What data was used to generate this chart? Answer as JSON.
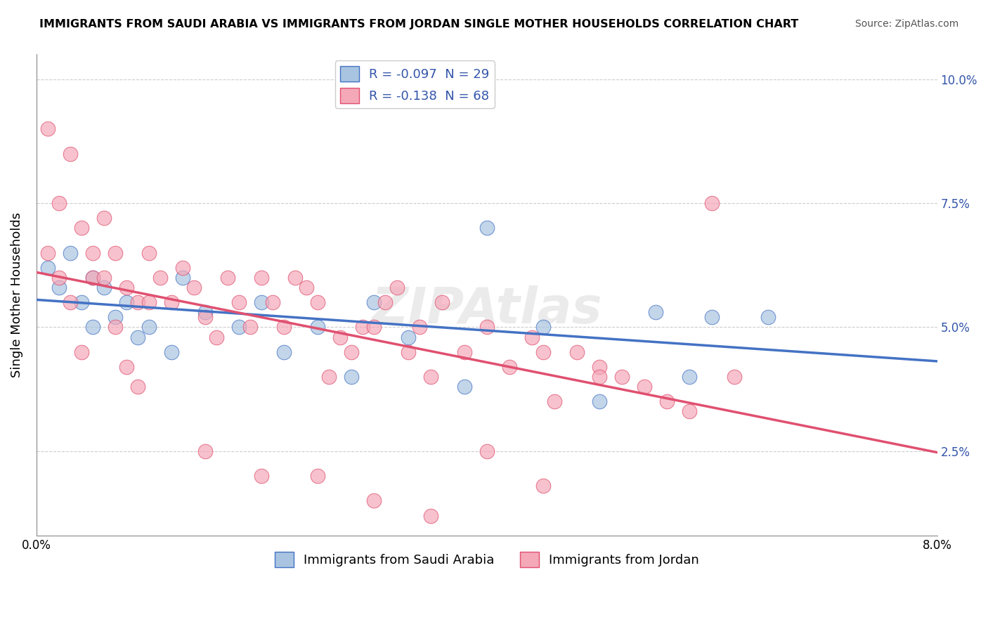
{
  "title": "IMMIGRANTS FROM SAUDI ARABIA VS IMMIGRANTS FROM JORDAN SINGLE MOTHER HOUSEHOLDS CORRELATION CHART",
  "source": "Source: ZipAtlas.com",
  "xlabel": "",
  "ylabel": "Single Mother Households",
  "legend_label_blue": "Immigrants from Saudi Arabia",
  "legend_label_pink": "Immigrants from Jordan",
  "R_blue": -0.097,
  "N_blue": 29,
  "R_pink": -0.138,
  "N_pink": 68,
  "xlim": [
    0.0,
    0.08
  ],
  "ylim": [
    0.008,
    0.105
  ],
  "yticks": [
    0.025,
    0.05,
    0.075,
    0.1
  ],
  "ytick_labels": [
    "2.5%",
    "5.0%",
    "7.5%",
    "10.0%"
  ],
  "xticks": [
    0.0,
    0.02,
    0.04,
    0.06,
    0.08
  ],
  "xtick_labels": [
    "0.0%",
    "",
    "",
    "",
    "8.0%"
  ],
  "color_blue": "#a8c4e0",
  "color_pink": "#f4a8b8",
  "line_color_blue": "#4472c4",
  "line_color_pink": "#e05070",
  "watermark": "ZIPAtlas",
  "blue_x": [
    0.001,
    0.002,
    0.003,
    0.004,
    0.005,
    0.005,
    0.006,
    0.007,
    0.008,
    0.009,
    0.01,
    0.012,
    0.013,
    0.015,
    0.018,
    0.02,
    0.022,
    0.025,
    0.028,
    0.03,
    0.033,
    0.038,
    0.04,
    0.045,
    0.05,
    0.055,
    0.058,
    0.06,
    0.065
  ],
  "blue_y": [
    0.062,
    0.058,
    0.065,
    0.055,
    0.06,
    0.05,
    0.058,
    0.052,
    0.055,
    0.048,
    0.05,
    0.045,
    0.06,
    0.053,
    0.05,
    0.055,
    0.045,
    0.05,
    0.04,
    0.055,
    0.048,
    0.038,
    0.07,
    0.05,
    0.035,
    0.053,
    0.04,
    0.052,
    0.052
  ],
  "pink_x": [
    0.001,
    0.002,
    0.003,
    0.004,
    0.005,
    0.006,
    0.007,
    0.008,
    0.009,
    0.01,
    0.011,
    0.012,
    0.013,
    0.014,
    0.015,
    0.016,
    0.017,
    0.018,
    0.019,
    0.02,
    0.021,
    0.022,
    0.023,
    0.024,
    0.025,
    0.026,
    0.027,
    0.028,
    0.029,
    0.03,
    0.031,
    0.032,
    0.033,
    0.034,
    0.035,
    0.036,
    0.038,
    0.04,
    0.042,
    0.044,
    0.045,
    0.046,
    0.048,
    0.05,
    0.052,
    0.054,
    0.056,
    0.058,
    0.06,
    0.062,
    0.001,
    0.002,
    0.003,
    0.004,
    0.005,
    0.006,
    0.007,
    0.008,
    0.009,
    0.01,
    0.015,
    0.02,
    0.025,
    0.03,
    0.035,
    0.04,
    0.045,
    0.05
  ],
  "pink_y": [
    0.09,
    0.06,
    0.085,
    0.07,
    0.06,
    0.072,
    0.065,
    0.058,
    0.055,
    0.065,
    0.06,
    0.055,
    0.062,
    0.058,
    0.052,
    0.048,
    0.06,
    0.055,
    0.05,
    0.06,
    0.055,
    0.05,
    0.06,
    0.058,
    0.055,
    0.04,
    0.048,
    0.045,
    0.05,
    0.05,
    0.055,
    0.058,
    0.045,
    0.05,
    0.04,
    0.055,
    0.045,
    0.05,
    0.042,
    0.048,
    0.045,
    0.035,
    0.045,
    0.042,
    0.04,
    0.038,
    0.035,
    0.033,
    0.075,
    0.04,
    0.065,
    0.075,
    0.055,
    0.045,
    0.065,
    0.06,
    0.05,
    0.042,
    0.038,
    0.055,
    0.025,
    0.02,
    0.02,
    0.015,
    0.012,
    0.025,
    0.018,
    0.04
  ]
}
